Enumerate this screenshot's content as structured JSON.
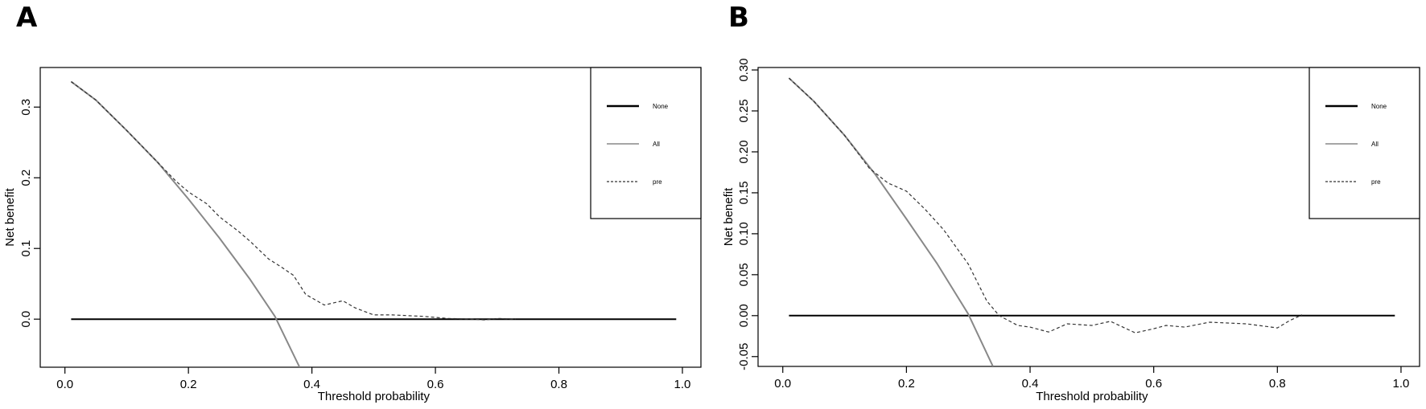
{
  "panels": [
    {
      "label": "A",
      "chart_data": {
        "type": "line",
        "xlabel": "Threshold probability",
        "ylabel": "Net benefit",
        "xlim": [
          -0.04,
          1.03
        ],
        "ylim": [
          -0.068,
          0.356
        ],
        "xticks": [
          0.0,
          0.2,
          0.4,
          0.6,
          0.8,
          1.0
        ],
        "xtick_labels": [
          "0.0",
          "0.2",
          "0.4",
          "0.6",
          "0.8",
          "1.0"
        ],
        "yticks": [
          0.0,
          0.1,
          0.2,
          0.3
        ],
        "ytick_labels": [
          "0.0",
          "0.1",
          "0.2",
          "0.3"
        ],
        "grid": false,
        "legend_position": "top-right",
        "series": [
          {
            "name": "None",
            "color": "#000000",
            "style": "solid",
            "x": [
              0.01,
              0.99
            ],
            "y": [
              0.0,
              0.0
            ]
          },
          {
            "name": "All",
            "color": "#888888",
            "style": "solid",
            "x": [
              0.01,
              0.05,
              0.1,
              0.15,
              0.2,
              0.25,
              0.3,
              0.34,
              0.38
            ],
            "y": [
              0.336,
              0.31,
              0.267,
              0.222,
              0.17,
              0.115,
              0.056,
              0.004,
              -0.068
            ]
          },
          {
            "name": "pre",
            "color": "#333333",
            "style": "dashed",
            "x": [
              0.01,
              0.05,
              0.1,
              0.15,
              0.18,
              0.2,
              0.23,
              0.25,
              0.28,
              0.3,
              0.33,
              0.35,
              0.37,
              0.39,
              0.42,
              0.45,
              0.47,
              0.5,
              0.53,
              0.58,
              0.62,
              0.66,
              0.68,
              0.7,
              0.73
            ],
            "y": [
              0.336,
              0.31,
              0.267,
              0.222,
              0.195,
              0.18,
              0.163,
              0.145,
              0.125,
              0.11,
              0.085,
              0.074,
              0.062,
              0.035,
              0.02,
              0.026,
              0.016,
              0.006,
              0.006,
              0.004,
              0.001,
              0.0,
              -0.001,
              0.001,
              0.0
            ]
          }
        ]
      }
    },
    {
      "label": "B",
      "chart_data": {
        "type": "line",
        "xlabel": "Threshold probability",
        "ylabel": "Net benefit",
        "xlim": [
          -0.04,
          1.03
        ],
        "ylim": [
          -0.062,
          0.303
        ],
        "xticks": [
          0.0,
          0.2,
          0.4,
          0.6,
          0.8,
          1.0
        ],
        "xtick_labels": [
          "0.0",
          "0.2",
          "0.4",
          "0.6",
          "0.8",
          "1.0"
        ],
        "yticks": [
          -0.05,
          0.0,
          0.05,
          0.1,
          0.15,
          0.2,
          0.25,
          0.3
        ],
        "ytick_labels": [
          "-0.05",
          "0.00",
          "0.05",
          "0.10",
          "0.15",
          "0.20",
          "0.25",
          "0.30"
        ],
        "grid": false,
        "legend_position": "top-right",
        "series": [
          {
            "name": "None",
            "color": "#000000",
            "style": "solid",
            "x": [
              0.01,
              0.99
            ],
            "y": [
              0.0,
              0.0
            ]
          },
          {
            "name": "All",
            "color": "#888888",
            "style": "solid",
            "x": [
              0.01,
              0.05,
              0.1,
              0.15,
              0.2,
              0.25,
              0.3,
              0.34
            ],
            "y": [
              0.29,
              0.262,
              0.22,
              0.172,
              0.118,
              0.063,
              0.002,
              -0.062
            ]
          },
          {
            "name": "pre",
            "color": "#333333",
            "style": "dashed",
            "x": [
              0.01,
              0.05,
              0.1,
              0.14,
              0.17,
              0.2,
              0.23,
              0.26,
              0.3,
              0.33,
              0.35,
              0.38,
              0.4,
              0.43,
              0.46,
              0.5,
              0.53,
              0.57,
              0.6,
              0.62,
              0.65,
              0.69,
              0.72,
              0.75,
              0.8,
              0.82,
              0.84
            ],
            "y": [
              0.29,
              0.262,
              0.22,
              0.18,
              0.162,
              0.152,
              0.13,
              0.105,
              0.063,
              0.018,
              0.0,
              -0.012,
              -0.014,
              -0.02,
              -0.01,
              -0.012,
              -0.007,
              -0.021,
              -0.016,
              -0.012,
              -0.014,
              -0.008,
              -0.009,
              -0.01,
              -0.015,
              -0.006,
              0.001
            ]
          }
        ]
      }
    }
  ]
}
